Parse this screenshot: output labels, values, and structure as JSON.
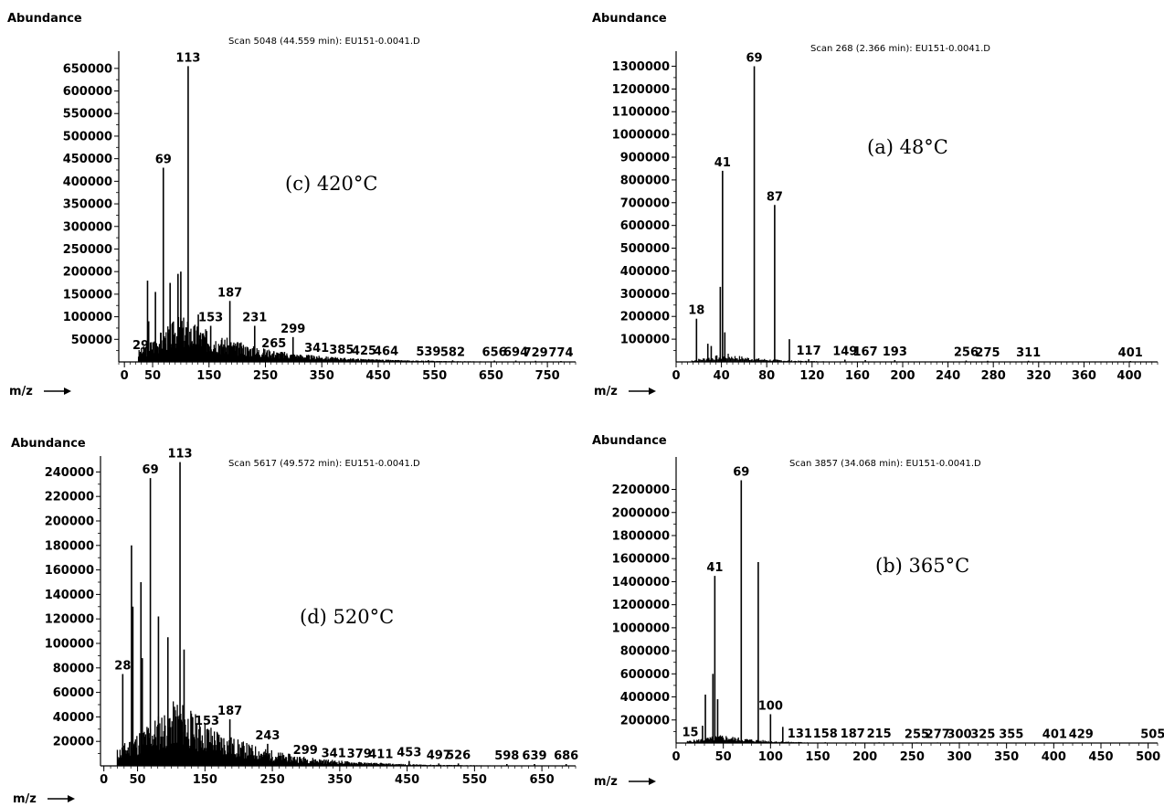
{
  "chart_data": [
    {
      "id": "c",
      "type": "bar",
      "ylabel": "Abundance",
      "xlabel": "m/z",
      "title": "Scan 5048 (44.559 min): EU151-0.0041.D",
      "annotation": "(c) 420°C",
      "xlim": [
        -10,
        800
      ],
      "ylim": [
        0,
        680000
      ],
      "yticks": [
        50000,
        100000,
        150000,
        200000,
        250000,
        300000,
        350000,
        400000,
        450000,
        500000,
        550000,
        600000,
        650000
      ],
      "xticks": [
        0,
        50,
        150,
        250,
        350,
        450,
        550,
        650,
        750
      ],
      "peaks": [
        {
          "x": 29,
          "y": 18000,
          "label": "29"
        },
        {
          "x": 41,
          "y": 180000
        },
        {
          "x": 43,
          "y": 90000
        },
        {
          "x": 55,
          "y": 155000
        },
        {
          "x": 69,
          "y": 430000,
          "label": "69"
        },
        {
          "x": 81,
          "y": 175000
        },
        {
          "x": 95,
          "y": 195000
        },
        {
          "x": 100,
          "y": 200000
        },
        {
          "x": 113,
          "y": 655000,
          "label": "113"
        },
        {
          "x": 131,
          "y": 105000
        },
        {
          "x": 153,
          "y": 80000,
          "label": "153"
        },
        {
          "x": 187,
          "y": 135000,
          "label": "187"
        },
        {
          "x": 231,
          "y": 80000,
          "label": "231"
        },
        {
          "x": 265,
          "y": 22000,
          "label": "265"
        },
        {
          "x": 299,
          "y": 55000,
          "label": "299"
        },
        {
          "x": 341,
          "y": 12000,
          "label": "341"
        },
        {
          "x": 385,
          "y": 8000,
          "label": "385"
        },
        {
          "x": 425,
          "y": 6000,
          "label": "425"
        },
        {
          "x": 464,
          "y": 5000,
          "label": "464"
        },
        {
          "x": 539,
          "y": 4000,
          "label": "539"
        },
        {
          "x": 582,
          "y": 3500,
          "label": "582"
        },
        {
          "x": 656,
          "y": 3000,
          "label": "656"
        },
        {
          "x": 694,
          "y": 3000,
          "label": "694"
        },
        {
          "x": 729,
          "y": 2500,
          "label": "729"
        },
        {
          "x": 774,
          "y": 2000,
          "label": "774"
        }
      ],
      "envelope": {
        "start": 25,
        "end": 790,
        "peak_at": 100,
        "peak_height": 85000,
        "decay": 120,
        "seed": 3
      }
    },
    {
      "id": "a",
      "type": "bar",
      "ylabel": "Abundance",
      "xlabel": "m/z",
      "title": "Scan 268 (2.366 min): EU151-0.0041.D",
      "annotation": "(a) 48°C",
      "xlim": [
        0,
        425
      ],
      "ylim": [
        0,
        1350000
      ],
      "yticks": [
        100000,
        200000,
        300000,
        400000,
        500000,
        600000,
        700000,
        800000,
        900000,
        1000000,
        1100000,
        1200000,
        1300000
      ],
      "xticks": [
        0,
        40,
        80,
        120,
        160,
        200,
        240,
        280,
        320,
        360,
        400
      ],
      "peaks": [
        {
          "x": 18,
          "y": 190000,
          "label": "18"
        },
        {
          "x": 28,
          "y": 80000
        },
        {
          "x": 31,
          "y": 70000
        },
        {
          "x": 39,
          "y": 330000
        },
        {
          "x": 41,
          "y": 840000,
          "label": "41"
        },
        {
          "x": 43,
          "y": 130000
        },
        {
          "x": 69,
          "y": 1300000,
          "label": "69"
        },
        {
          "x": 87,
          "y": 690000,
          "label": "87"
        },
        {
          "x": 100,
          "y": 100000
        },
        {
          "x": 117,
          "y": 12000,
          "label": "117"
        },
        {
          "x": 149,
          "y": 10000,
          "label": "149"
        },
        {
          "x": 167,
          "y": 8000,
          "label": "167"
        },
        {
          "x": 193,
          "y": 8000,
          "label": "193"
        },
        {
          "x": 256,
          "y": 6000,
          "label": "256"
        },
        {
          "x": 275,
          "y": 5000,
          "label": "275"
        },
        {
          "x": 311,
          "y": 5000,
          "label": "311"
        },
        {
          "x": 401,
          "y": 4000,
          "label": "401"
        }
      ],
      "envelope": {
        "start": 14,
        "end": 130,
        "peak_at": 45,
        "peak_height": 30000,
        "decay": 35,
        "seed": 7
      }
    },
    {
      "id": "d",
      "type": "bar",
      "ylabel": "Abundance",
      "xlabel": "m/z",
      "title": "Scan 5617 (49.572 min): EU151-0.0041.D",
      "annotation": "(d) 520°C",
      "xlim": [
        -5,
        700
      ],
      "ylim": [
        0,
        250000
      ],
      "yticks": [
        20000,
        40000,
        60000,
        80000,
        100000,
        120000,
        140000,
        160000,
        180000,
        200000,
        220000,
        240000
      ],
      "xticks": [
        0,
        50,
        150,
        250,
        350,
        450,
        550,
        650
      ],
      "peaks": [
        {
          "x": 28,
          "y": 75000,
          "label": "28"
        },
        {
          "x": 41,
          "y": 180000
        },
        {
          "x": 43,
          "y": 130000
        },
        {
          "x": 55,
          "y": 150000
        },
        {
          "x": 57,
          "y": 88000
        },
        {
          "x": 69,
          "y": 235000,
          "label": "69"
        },
        {
          "x": 81,
          "y": 122000
        },
        {
          "x": 95,
          "y": 105000
        },
        {
          "x": 113,
          "y": 248000,
          "label": "113"
        },
        {
          "x": 119,
          "y": 95000
        },
        {
          "x": 153,
          "y": 30000,
          "label": "153"
        },
        {
          "x": 187,
          "y": 38000,
          "label": "187"
        },
        {
          "x": 243,
          "y": 18000,
          "label": "243"
        },
        {
          "x": 299,
          "y": 6000,
          "label": "299"
        },
        {
          "x": 341,
          "y": 3500,
          "label": "341"
        },
        {
          "x": 379,
          "y": 3000,
          "label": "379"
        },
        {
          "x": 411,
          "y": 2500,
          "label": "411"
        },
        {
          "x": 453,
          "y": 4000,
          "label": "453"
        },
        {
          "x": 497,
          "y": 2000,
          "label": "497"
        },
        {
          "x": 526,
          "y": 2000,
          "label": "526"
        },
        {
          "x": 598,
          "y": 1500,
          "label": "598"
        },
        {
          "x": 639,
          "y": 1500,
          "label": "639"
        },
        {
          "x": 686,
          "y": 1500,
          "label": "686"
        }
      ],
      "envelope": {
        "start": 20,
        "end": 690,
        "peak_at": 110,
        "peak_height": 45000,
        "decay": 95,
        "seed": 11
      }
    },
    {
      "id": "b",
      "type": "bar",
      "ylabel": "Abundance",
      "xlabel": "m/z",
      "title": "Scan 3857 (34.068 min): EU151-0.0041.D",
      "annotation": "(b) 365°C",
      "xlim": [
        0,
        510
      ],
      "ylim": [
        0,
        2450000
      ],
      "yticks": [
        200000,
        400000,
        600000,
        800000,
        1000000,
        1200000,
        1400000,
        1600000,
        1800000,
        2000000,
        2200000
      ],
      "xticks": [
        0,
        50,
        100,
        150,
        200,
        250,
        300,
        350,
        400,
        450,
        500
      ],
      "peaks": [
        {
          "x": 15,
          "y": 20000,
          "label": "15"
        },
        {
          "x": 28,
          "y": 150000
        },
        {
          "x": 31,
          "y": 420000
        },
        {
          "x": 39,
          "y": 600000
        },
        {
          "x": 41,
          "y": 1450000,
          "label": "41"
        },
        {
          "x": 44,
          "y": 380000
        },
        {
          "x": 69,
          "y": 2280000,
          "label": "69"
        },
        {
          "x": 87,
          "y": 1570000
        },
        {
          "x": 100,
          "y": 250000,
          "label": "100"
        },
        {
          "x": 113,
          "y": 140000
        },
        {
          "x": 131,
          "y": 8000,
          "label": "131"
        },
        {
          "x": 158,
          "y": 7000,
          "label": "158"
        },
        {
          "x": 187,
          "y": 6000,
          "label": "187"
        },
        {
          "x": 215,
          "y": 6000,
          "label": "215"
        },
        {
          "x": 255,
          "y": 5000,
          "label": "255"
        },
        {
          "x": 277,
          "y": 5000,
          "label": "277"
        },
        {
          "x": 300,
          "y": 5000,
          "label": "300"
        },
        {
          "x": 325,
          "y": 4000,
          "label": "325"
        },
        {
          "x": 355,
          "y": 4000,
          "label": "355"
        },
        {
          "x": 401,
          "y": 4000,
          "label": "401"
        },
        {
          "x": 429,
          "y": 4000,
          "label": "429"
        },
        {
          "x": 505,
          "y": 3000,
          "label": "505"
        }
      ],
      "envelope": {
        "start": 12,
        "end": 140,
        "peak_at": 50,
        "peak_height": 60000,
        "decay": 40,
        "seed": 5
      }
    }
  ]
}
